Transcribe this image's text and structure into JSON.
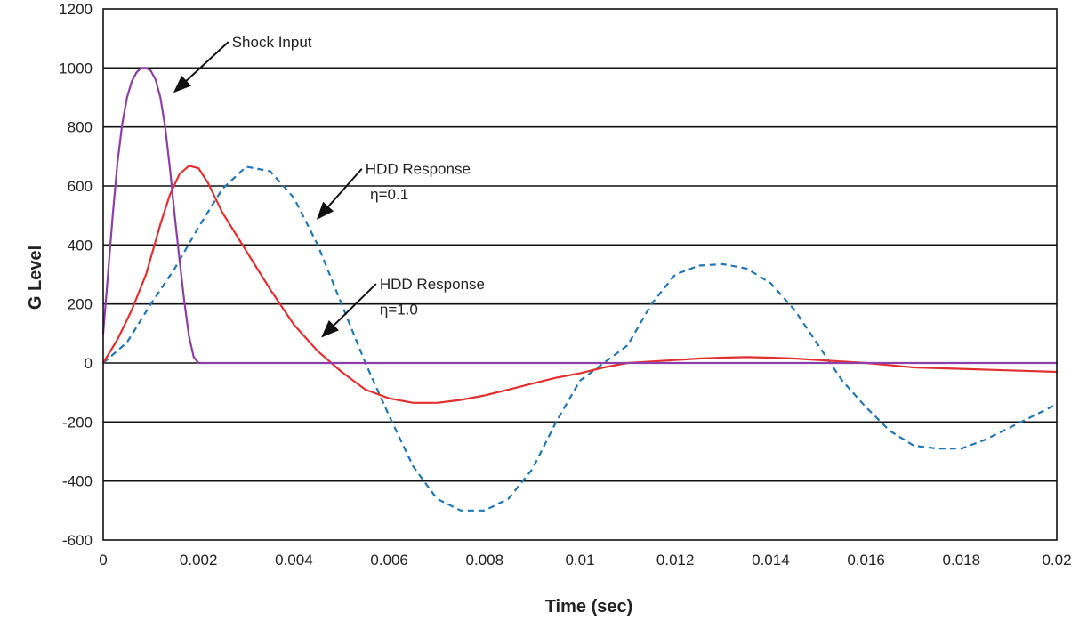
{
  "chart_data": {
    "type": "line",
    "title": "",
    "xlabel": "Time (sec)",
    "ylabel": "G Level",
    "xlim": [
      0,
      0.02
    ],
    "ylim": [
      -600,
      1200
    ],
    "x_ticks": [
      "0",
      "0.002",
      "0.004",
      "0.006",
      "0.008",
      "0.01",
      "0.012",
      "0.014",
      "0.016",
      "0.018",
      "0.02"
    ],
    "y_ticks": [
      "1200",
      "1000",
      "800",
      "600",
      "400",
      "200",
      "0",
      "-200",
      "-400",
      "-600"
    ],
    "grid": "horizontal",
    "series": [
      {
        "color": "#8e3ea8",
        "style": "solid",
        "x": [
          0,
          0.0001,
          0.0002,
          0.0003,
          0.0004,
          0.0005,
          0.0006,
          0.0007,
          0.0008,
          0.0009,
          0.001,
          0.0011,
          0.0012,
          0.0013,
          0.0014,
          0.0015,
          0.0016,
          0.0017,
          0.0018,
          0.0019,
          0.002,
          0.02
        ],
        "y": [
          100,
          300,
          500,
          680,
          810,
          900,
          955,
          985,
          1000,
          1000,
          990,
          960,
          900,
          800,
          660,
          500,
          350,
          210,
          90,
          20,
          0,
          0
        ]
      },
      {
        "color": "#e23030",
        "style": "solid",
        "x": [
          0,
          0.0003,
          0.0006,
          0.0009,
          0.0012,
          0.0014,
          0.0016,
          0.0018,
          0.002,
          0.0022,
          0.0025,
          0.003,
          0.0035,
          0.004,
          0.0045,
          0.005,
          0.0055,
          0.006,
          0.0065,
          0.007,
          0.0075,
          0.008,
          0.0085,
          0.009,
          0.0095,
          0.01,
          0.0105,
          0.011,
          0.0115,
          0.012,
          0.0125,
          0.013,
          0.0135,
          0.014,
          0.0145,
          0.015,
          0.016,
          0.017,
          0.018,
          0.019,
          0.02
        ],
        "y": [
          0,
          80,
          180,
          300,
          470,
          570,
          640,
          668,
          660,
          610,
          510,
          380,
          250,
          130,
          40,
          -30,
          -90,
          -120,
          -135,
          -135,
          -125,
          -110,
          -90,
          -70,
          -50,
          -35,
          -15,
          0,
          5,
          10,
          15,
          18,
          20,
          18,
          15,
          10,
          0,
          -15,
          -20,
          -25,
          -30
        ]
      },
      {
        "color": "#1f77b4",
        "style": "dashed",
        "x": [
          0,
          0.0005,
          0.001,
          0.0015,
          0.002,
          0.0025,
          0.003,
          0.0035,
          0.004,
          0.0045,
          0.005,
          0.0055,
          0.006,
          0.0065,
          0.007,
          0.0075,
          0.008,
          0.0085,
          0.009,
          0.0095,
          0.01,
          0.0105,
          0.011,
          0.0115,
          0.012,
          0.0125,
          0.013,
          0.0135,
          0.014,
          0.0145,
          0.015,
          0.0155,
          0.016,
          0.0165,
          0.017,
          0.0175,
          0.018,
          0.0185,
          0.019,
          0.0195,
          0.02
        ],
        "y": [
          0,
          70,
          200,
          320,
          460,
          590,
          665,
          650,
          560,
          400,
          200,
          0,
          -180,
          -350,
          -460,
          -500,
          -500,
          -460,
          -360,
          -200,
          -60,
          0,
          60,
          200,
          300,
          330,
          335,
          320,
          270,
          180,
          60,
          -60,
          -150,
          -230,
          -280,
          -290,
          -290,
          -260,
          -220,
          -180,
          -140
        ]
      }
    ],
    "annotations": [
      {
        "text": "Shock Input",
        "x": 0.0027,
        "y": 1070,
        "arrow_to": [
          0.0015,
          920
        ]
      },
      {
        "text": "HDD Response",
        "x": 0.0055,
        "y": 640,
        "arrow_to": [
          0.0045,
          490
        ]
      },
      {
        "text": "η=0.1",
        "x": 0.0056,
        "y": 555
      },
      {
        "text": "HDD Response",
        "x": 0.0058,
        "y": 250,
        "arrow_to": [
          0.0046,
          90
        ]
      },
      {
        "text": "η=1.0",
        "x": 0.0058,
        "y": 165
      }
    ]
  }
}
